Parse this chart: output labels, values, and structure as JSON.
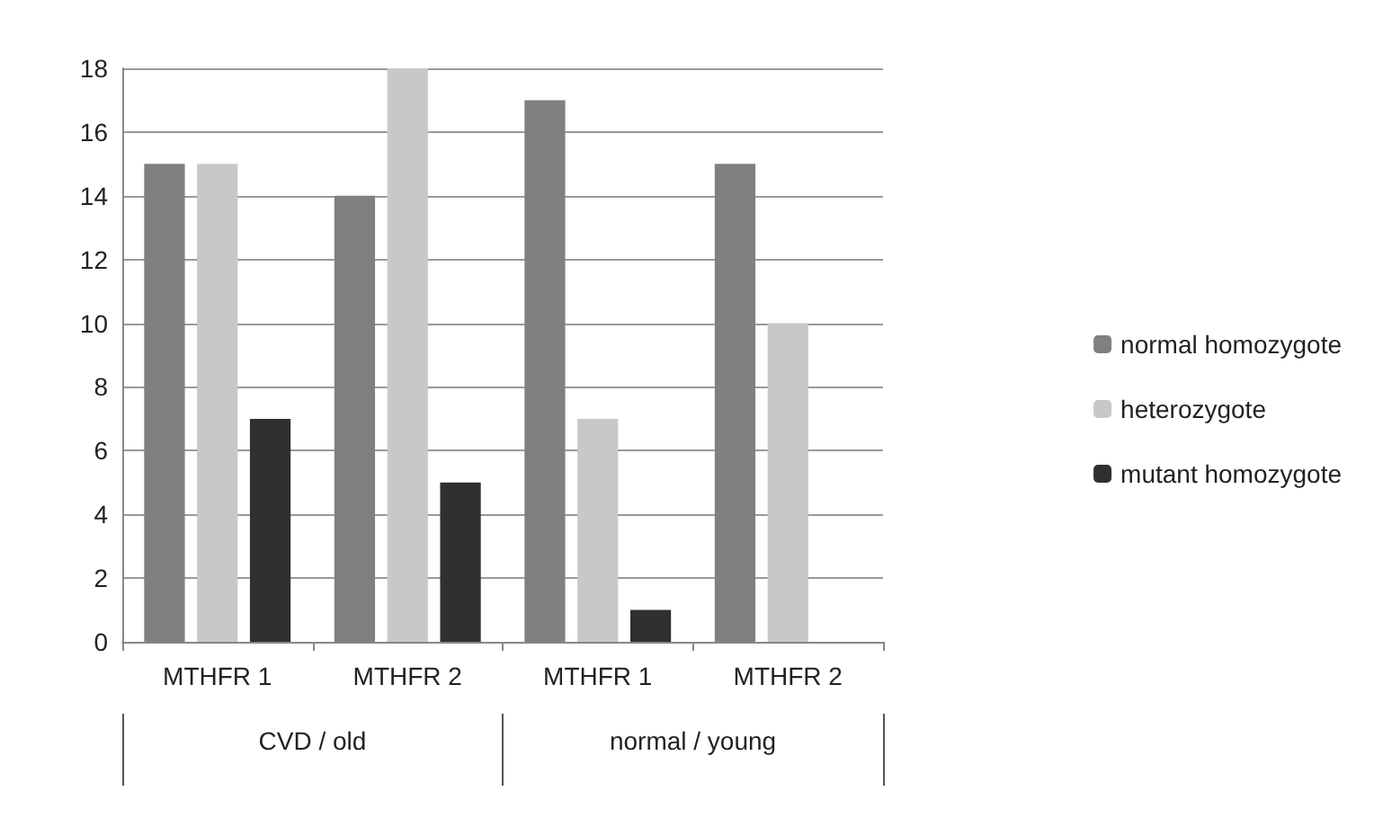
{
  "chart_data": {
    "type": "bar",
    "categories": [
      "MTHFR 1",
      "MTHFR 2",
      "MTHFR 1",
      "MTHFR 2"
    ],
    "annotations": [
      "CVD / old",
      "normal / young"
    ],
    "series": [
      {
        "name": "normal homozygote",
        "color": "#808080",
        "values": [
          15,
          14,
          17,
          15
        ]
      },
      {
        "name": "heterozygote",
        "color": "#c8c8c8",
        "values": [
          15,
          18,
          7,
          10
        ]
      },
      {
        "name": "mutant homozygote",
        "color": "#303030",
        "values": [
          7,
          5,
          1,
          0
        ]
      }
    ],
    "ylim": [
      0,
      18
    ],
    "yticks": [
      0,
      2,
      4,
      6,
      8,
      10,
      12,
      14,
      16,
      18
    ],
    "grid": "y",
    "legend": "right"
  }
}
